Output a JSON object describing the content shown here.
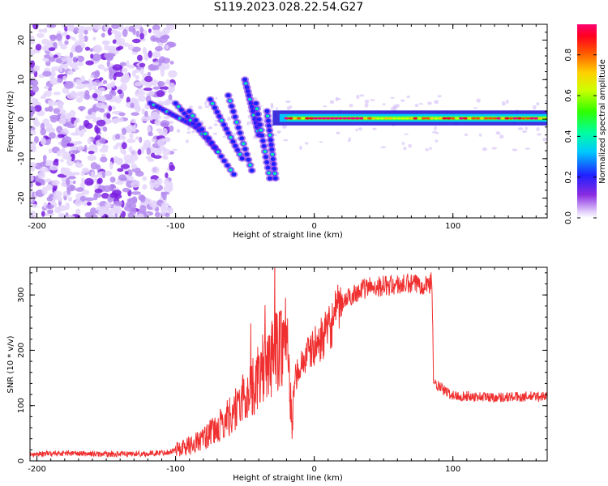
{
  "title": "S119.2023.028.22.54.G27",
  "colors": {
    "snr_line": "#f03030",
    "scatter_low": "#c9a3f5",
    "scatter_mid": "#7a1fe0",
    "ridge_high": "#ff2020"
  },
  "chart_data": [
    {
      "type": "heatmap",
      "title": "S119.2023.028.22.54.G27",
      "xlabel": "Height of straight line (km)",
      "ylabel": "Frequency (Hz)",
      "xlim": [
        -205,
        168
      ],
      "ylim": [
        -25,
        24
      ],
      "x_ticks": [
        -200,
        -100,
        0,
        100
      ],
      "x_tick_labels": [
        "-200",
        "-100",
        "0",
        "100"
      ],
      "y_ticks": [
        -20,
        -10,
        0,
        10,
        20
      ],
      "y_tick_labels": [
        "-20",
        "-10",
        "0",
        "10",
        "20"
      ],
      "colorbar": {
        "label": "Normalized spectral amplitude",
        "range": [
          0.0,
          0.95
        ],
        "ticks": [
          0.0,
          0.2,
          0.4,
          0.6,
          0.8
        ],
        "tick_labels": [
          "0.0",
          "0.2",
          "0.4",
          "0.6",
          "0.8"
        ]
      },
      "features": [
        {
          "name": "noise",
          "x": [
            -205,
            -102
          ],
          "freq": [
            -25,
            24
          ],
          "amplitude": 0.15
        },
        {
          "name": "chirp",
          "x": [
            -118,
            -30
          ],
          "freq": [
            -15,
            10
          ],
          "amplitude": 0.4
        },
        {
          "name": "tone",
          "x": [
            -30,
            168
          ],
          "freq": [
            -1,
            2
          ],
          "amplitude": 0.9
        }
      ]
    },
    {
      "type": "line",
      "xlabel": "Height of straight line (km)",
      "ylabel": "SNR (10 * v/v)",
      "xlim": [
        -205,
        168
      ],
      "ylim": [
        0,
        350
      ],
      "x_ticks": [
        -200,
        -100,
        0,
        100
      ],
      "x_tick_labels": [
        "-200",
        "-100",
        "0",
        "100"
      ],
      "y_ticks": [
        0,
        100,
        200,
        300
      ],
      "y_tick_labels": [
        "0",
        "100",
        "200",
        "300"
      ],
      "series": [
        {
          "x": [
            -205,
            -180,
            -150,
            -120,
            -105,
            -90,
            -80,
            -70,
            -60,
            -50,
            -40,
            -30,
            -20,
            -16,
            -14,
            -10,
            0,
            10,
            20,
            30,
            40,
            60,
            80,
            85,
            86,
            95,
            100,
            130,
            168
          ],
          "values": [
            12,
            14,
            12,
            13,
            16,
            28,
            40,
            58,
            85,
            115,
            150,
            190,
            230,
            60,
            150,
            175,
            205,
            235,
            285,
            305,
            315,
            318,
            320,
            322,
            140,
            125,
            118,
            115,
            117
          ]
        }
      ]
    }
  ]
}
